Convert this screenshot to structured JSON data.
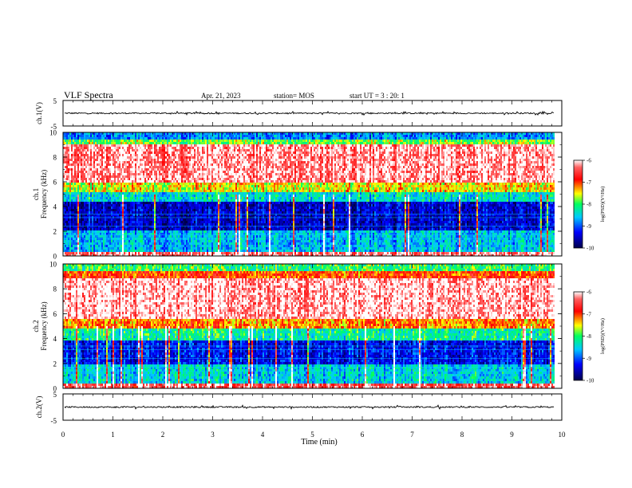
{
  "header": {
    "title": "VLF Spectra",
    "date": "Apr. 21, 2023",
    "station": "station= MOS",
    "start_ut": "start  UT =   3 : 20: 1"
  },
  "chart_data": [
    {
      "type": "line",
      "ylabel": "ch.1(V)",
      "ylim": [
        -5,
        5
      ],
      "y_ticks": [
        "5",
        "-5"
      ],
      "description_level": "near 0 V with small fluctuations",
      "xlim": [
        0,
        9.85
      ]
    },
    {
      "type": "heatmap",
      "ylabel_line1": "ch.1",
      "ylabel_line2": "Frequency (kHz)",
      "ylim": [
        0,
        10
      ],
      "y_ticks": [
        "0",
        "2",
        "4",
        "6",
        "8",
        "10"
      ],
      "xlim": [
        0,
        9.85
      ],
      "colorbar": {
        "label": "log(PSD)(V²/Hz)",
        "range": [
          -10,
          -6
        ],
        "ticks": [
          "-6",
          "-7",
          "-8",
          "-9",
          "-10"
        ]
      },
      "bands": [
        {
          "from_khz": 0.0,
          "to_khz": 0.4,
          "level": -6.3
        },
        {
          "from_khz": 0.4,
          "to_khz": 2.0,
          "level": -8.6
        },
        {
          "from_khz": 2.0,
          "to_khz": 4.3,
          "level": -9.5
        },
        {
          "from_khz": 4.3,
          "to_khz": 5.2,
          "level": -8.4
        },
        {
          "from_khz": 5.2,
          "to_khz": 6.0,
          "level": -7.5
        },
        {
          "from_khz": 6.0,
          "to_khz": 9.0,
          "level": -6.2
        },
        {
          "from_khz": 9.0,
          "to_khz": 9.5,
          "level": -7.8
        },
        {
          "from_khz": 9.5,
          "to_khz": 10.0,
          "level": -8.8
        }
      ]
    },
    {
      "type": "heatmap",
      "ylabel_line1": "ch.2",
      "ylabel_line2": "Frequency (kHz)",
      "ylim": [
        0,
        10
      ],
      "y_ticks": [
        "0",
        "2",
        "4",
        "6",
        "8",
        "10"
      ],
      "xlim": [
        0,
        9.85
      ],
      "colorbar": {
        "label": "log(PSD)(V²/Hz)",
        "range": [
          -10,
          -6
        ],
        "ticks": [
          "-6",
          "-7",
          "-8",
          "-9",
          "-10"
        ]
      },
      "bands": [
        {
          "from_khz": 0.0,
          "to_khz": 0.4,
          "level": -6.4
        },
        {
          "from_khz": 0.4,
          "to_khz": 2.0,
          "level": -8.5
        },
        {
          "from_khz": 2.0,
          "to_khz": 3.8,
          "level": -9.3
        },
        {
          "from_khz": 3.8,
          "to_khz": 4.8,
          "level": -8.2
        },
        {
          "from_khz": 4.8,
          "to_khz": 5.6,
          "level": -7.2
        },
        {
          "from_khz": 5.6,
          "to_khz": 8.8,
          "level": -6.1
        },
        {
          "from_khz": 8.8,
          "to_khz": 9.4,
          "level": -7.0
        },
        {
          "from_khz": 9.4,
          "to_khz": 10.0,
          "level": -8.0
        }
      ]
    },
    {
      "type": "line",
      "ylabel": "ch.2(V)",
      "ylim": [
        -5,
        5
      ],
      "y_ticks": [
        "5",
        "-5"
      ],
      "description_level": "near 0 V with small fluctuations",
      "xlim": [
        0,
        9.85
      ]
    }
  ],
  "x_axis": {
    "label": "Time  (min)",
    "ticks": [
      "0",
      "1",
      "2",
      "3",
      "4",
      "5",
      "6",
      "7",
      "8",
      "9",
      "10"
    ],
    "xlim": [
      0,
      10
    ]
  },
  "colors": {
    "dark_blue": "#00008b",
    "blue": "#0000ff",
    "cyan": "#00ffff",
    "green": "#00ff00",
    "yellow": "#ffff00",
    "red": "#ff0000",
    "white": "#ffffff"
  }
}
